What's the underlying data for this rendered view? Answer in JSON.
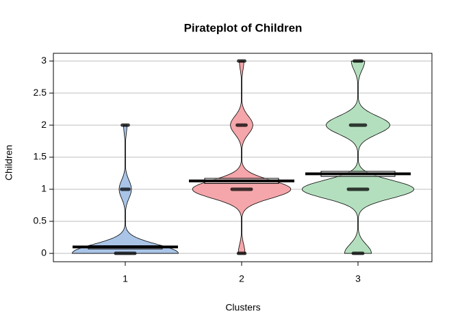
{
  "chart_data": {
    "type": "pirate",
    "title": "Pirateplot of Children",
    "x_label": "Clusters",
    "y_label": "Children",
    "categories": [
      "1",
      "2",
      "3"
    ],
    "colors": [
      "#a9c4e6",
      "#f4a6aa",
      "#b4dfbe"
    ],
    "values": [
      0.1,
      1.13,
      1.24
    ],
    "ci_lower": [
      0.07,
      1.09,
      1.2
    ],
    "ci_upper": [
      0.12,
      1.17,
      1.28
    ],
    "levels": [
      0,
      1,
      2,
      3
    ],
    "density": [
      [
        0.95,
        0.11,
        0.03,
        0
      ],
      [
        0.06,
        0.88,
        0.2,
        0.04
      ],
      [
        0.24,
        1,
        0.57,
        0.12
      ]
    ],
    "ylim": [
      -0.13,
      3.12
    ],
    "yticks": [
      0,
      0.5,
      1,
      1.5,
      2,
      2.5,
      3
    ],
    "grid": true
  }
}
